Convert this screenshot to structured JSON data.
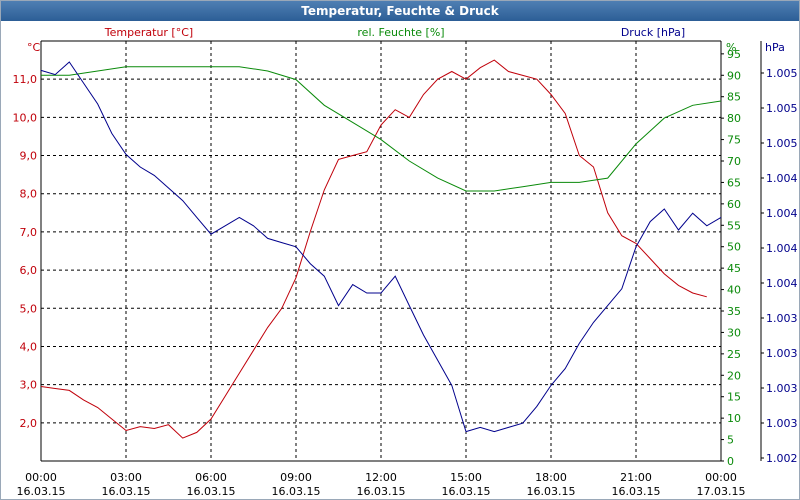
{
  "window": {
    "title": "Temperatur, Feuchte & Druck"
  },
  "colors": {
    "temperature": "#c0000a",
    "humidity": "#0a8a0a",
    "pressure": "#00008c",
    "grid": "#000000",
    "titlebar": "#2c5e96"
  },
  "chart_data": {
    "type": "line",
    "title": "Temperatur, Feuchte & Druck",
    "x_ticks": [
      {
        "time": "00:00",
        "date": "16.03.15"
      },
      {
        "time": "03:00",
        "date": "16.03.15"
      },
      {
        "time": "06:00",
        "date": "16.03.15"
      },
      {
        "time": "09:00",
        "date": "16.03.15"
      },
      {
        "time": "12:00",
        "date": "16.03.15"
      },
      {
        "time": "15:00",
        "date": "16.03.15"
      },
      {
        "time": "18:00",
        "date": "16.03.15"
      },
      {
        "time": "21:00",
        "date": "16.03.15"
      },
      {
        "time": "00:00",
        "date": "17.03.15"
      }
    ],
    "xlim": [
      0,
      24
    ],
    "axes": {
      "temperature": {
        "label": "Temperatur [°C]",
        "unit": "°C",
        "ylim": [
          1.0,
          12.0
        ],
        "ticks": [
          "2,0",
          "3,0",
          "4,0",
          "5,0",
          "6,0",
          "7,0",
          "8,0",
          "9,0",
          "10,0",
          "11,0"
        ]
      },
      "humidity": {
        "label": "rel. Feuchte [%]",
        "unit": "%",
        "ylim": [
          0,
          98
        ],
        "ticks": [
          "0",
          "5",
          "10",
          "15",
          "20",
          "25",
          "30",
          "35",
          "40",
          "45",
          "50",
          "55",
          "60",
          "65",
          "70",
          "75",
          "80",
          "85",
          "90",
          "95"
        ]
      },
      "pressure": {
        "label": "Druck [hPa]",
        "unit": "hPa",
        "ylim": [
          0,
          100
        ],
        "ticks": [
          "1.002",
          "1.003",
          "1.003",
          "1.003",
          "1.003",
          "1.004",
          "1.004",
          "1.004",
          "1.004",
          "1.005",
          "1.005",
          "1.005"
        ]
      }
    },
    "series": [
      {
        "name": "Temperatur [°C]",
        "axis": "temperature",
        "x": [
          0,
          0.5,
          1,
          1.5,
          2,
          2.5,
          3,
          3.5,
          4,
          4.5,
          5,
          5.5,
          6,
          6.5,
          7,
          7.5,
          8,
          8.5,
          9,
          9.5,
          10,
          10.5,
          11,
          11.5,
          12,
          12.5,
          13,
          13.5,
          14,
          14.5,
          15,
          15.5,
          16,
          16.5,
          17,
          17.5,
          18,
          18.5,
          19,
          19.5,
          20,
          20.5,
          21,
          21.5,
          22,
          22.5,
          23,
          23.5
        ],
        "values": [
          2.95,
          2.9,
          2.85,
          2.6,
          2.4,
          2.1,
          1.8,
          1.9,
          1.85,
          1.95,
          1.6,
          1.75,
          2.1,
          2.7,
          3.3,
          3.9,
          4.5,
          5.0,
          5.8,
          7.0,
          8.1,
          8.9,
          9.0,
          9.1,
          9.8,
          10.2,
          10.0,
          10.6,
          11.0,
          11.2,
          11.0,
          11.3,
          11.5,
          11.2,
          11.1,
          11.0,
          10.6,
          10.1,
          9.0,
          8.7,
          7.5,
          6.9,
          6.7,
          6.3,
          5.9,
          5.6,
          5.4,
          5.3
        ]
      },
      {
        "name": "rel. Feuchte [%]",
        "axis": "humidity",
        "x": [
          0,
          1,
          2,
          3,
          4,
          5,
          6,
          7,
          8,
          9,
          10,
          11,
          12,
          13,
          14,
          15,
          16,
          17,
          18,
          19,
          20,
          21,
          22,
          23,
          24
        ],
        "values": [
          90,
          90,
          91,
          92,
          92,
          92,
          92,
          92,
          91,
          89,
          83,
          79,
          75,
          70,
          66,
          63,
          63,
          64,
          65,
          65,
          66,
          74,
          80,
          83,
          84
        ]
      },
      {
        "name": "Druck [hPa]",
        "axis": "pressure",
        "x": [
          0,
          0.5,
          1,
          1.5,
          2,
          2.5,
          3,
          3.5,
          4,
          4.5,
          5,
          5.5,
          6,
          6.5,
          7,
          7.5,
          8,
          8.5,
          9,
          9.5,
          10,
          10.5,
          11,
          11.5,
          12,
          12.5,
          13,
          13.5,
          14,
          14.5,
          15,
          15.5,
          16,
          16.5,
          17,
          17.5,
          18,
          18.5,
          19,
          19.5,
          20,
          20.5,
          21,
          21.5,
          22,
          22.5,
          23,
          23.5,
          24
        ],
        "values": [
          93,
          92,
          95,
          90,
          85,
          78,
          73,
          70,
          68,
          65,
          62,
          58,
          54,
          56,
          58,
          56,
          53,
          52,
          51,
          47,
          44,
          37,
          42,
          40,
          40,
          44,
          37,
          30,
          24,
          18,
          7,
          8,
          7,
          8,
          9,
          13,
          18,
          22,
          28,
          33,
          37,
          41,
          51,
          57,
          60,
          55,
          59,
          56,
          58
        ]
      }
    ]
  }
}
